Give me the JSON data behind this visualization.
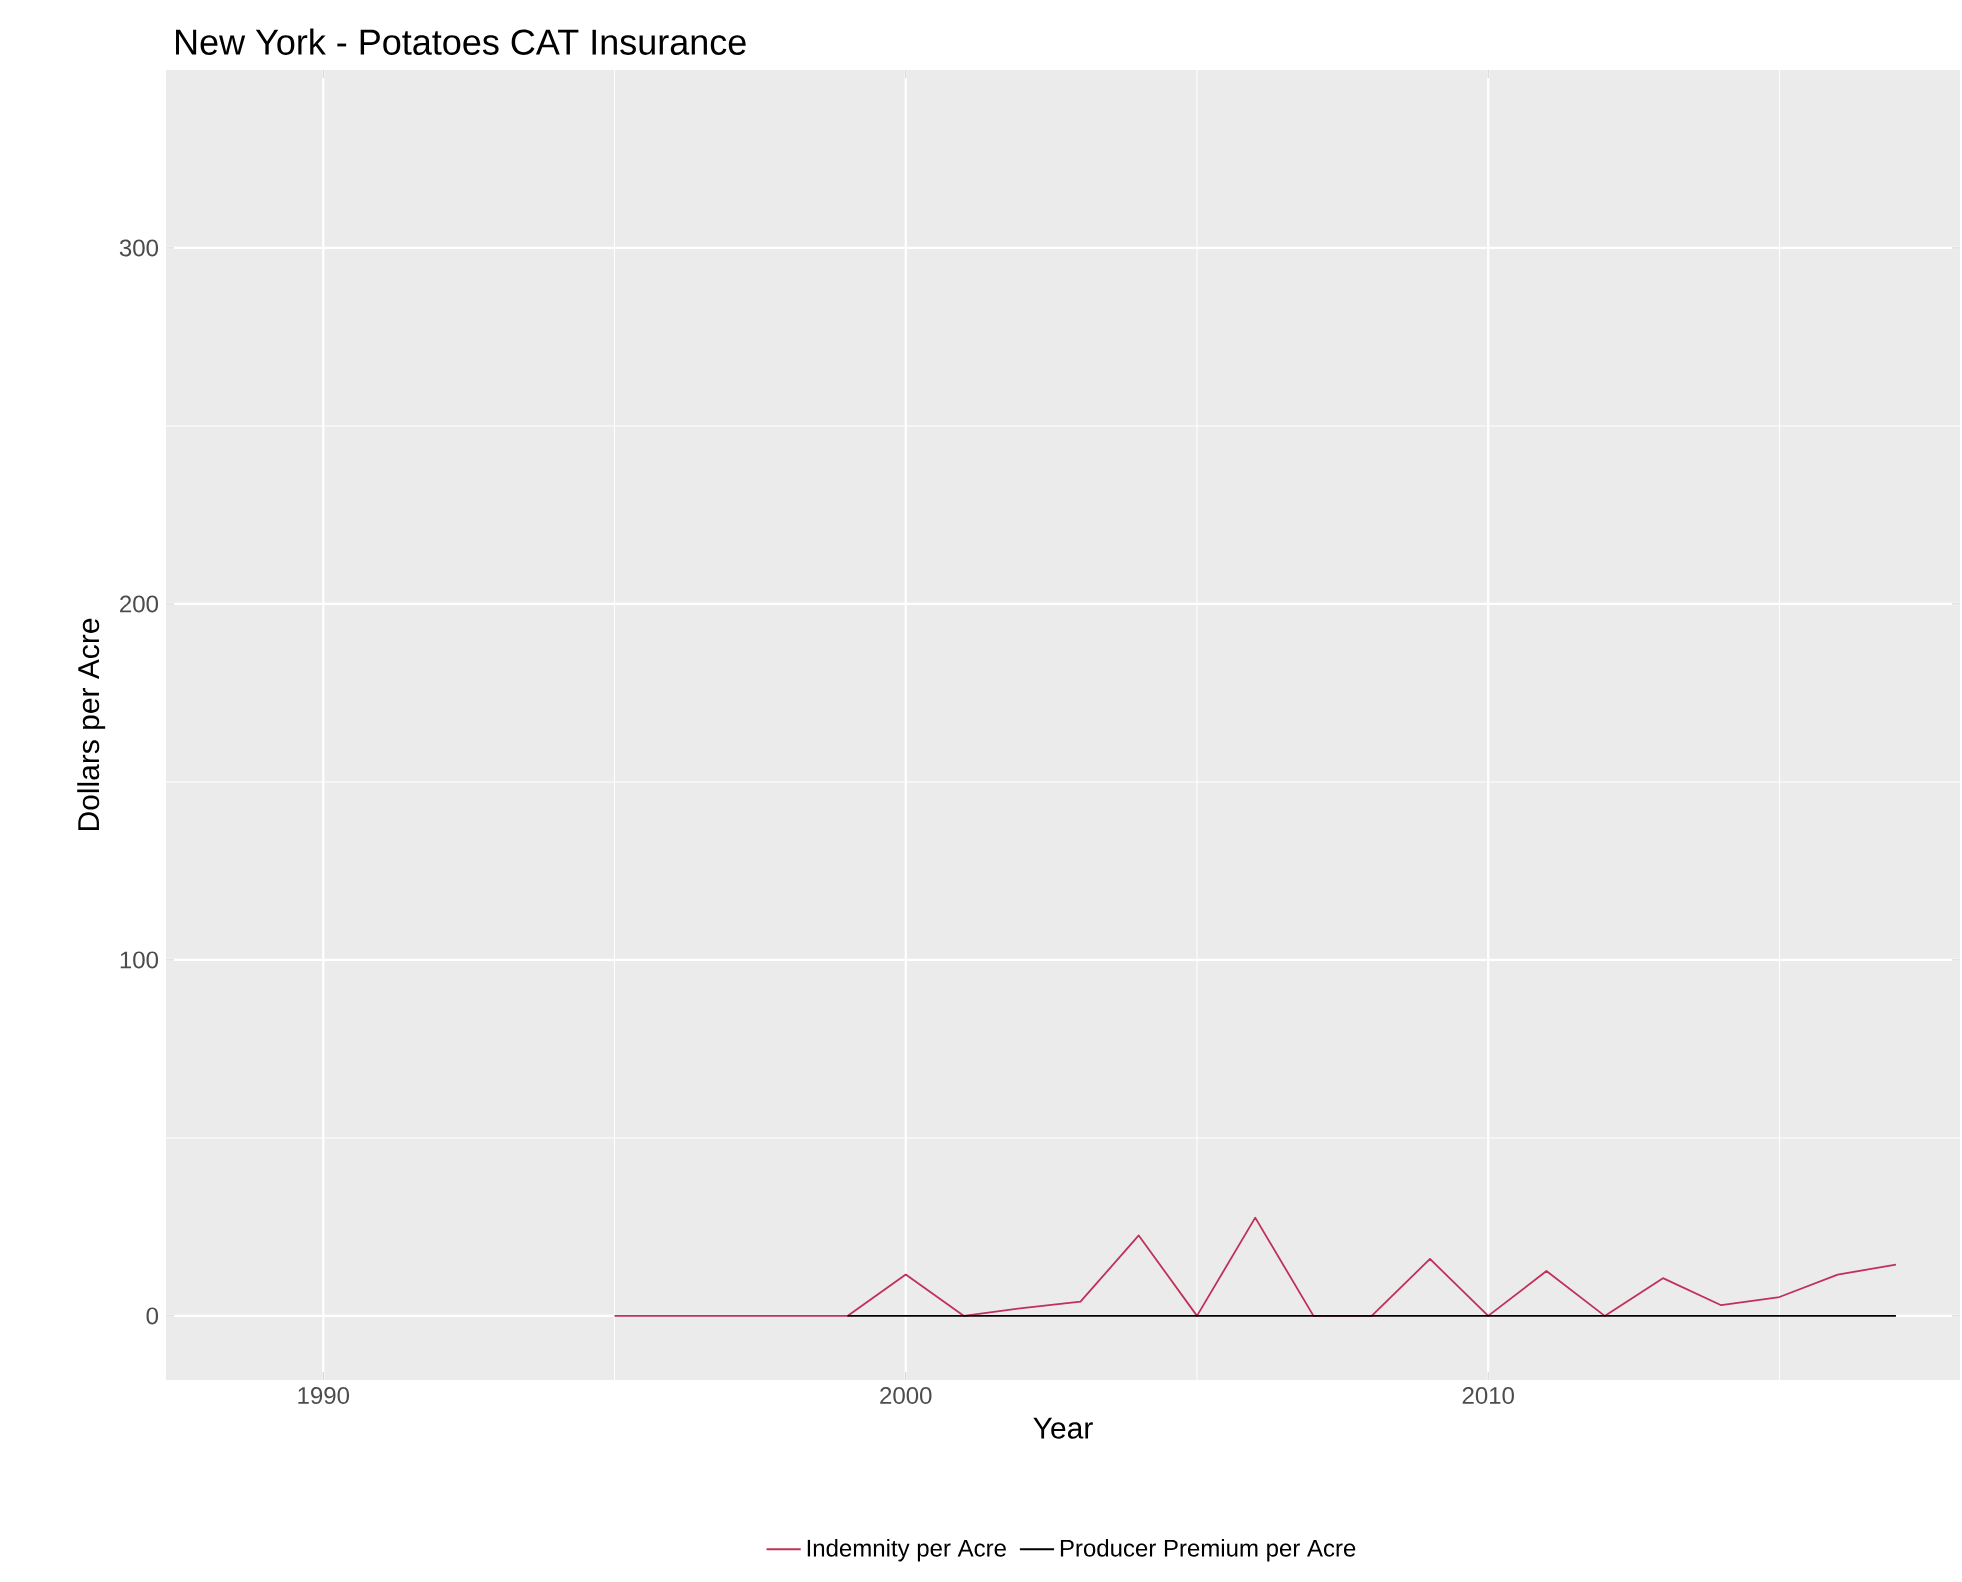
{
  "chart_data": {
    "type": "line",
    "title": "New York - Potatoes CAT Insurance",
    "xlabel": "Year",
    "ylabel": "Dollars per Acre",
    "series": [
      {
        "name": "Indemnity per Acre",
        "color": "#c0305a",
        "x": [
          1995,
          1996,
          1997,
          1998,
          1999,
          2000,
          2001,
          2002,
          2003,
          2004,
          2005,
          2006,
          2007,
          2008,
          2009,
          2010,
          2011,
          2012,
          2013,
          2014,
          2015,
          2016,
          2017
        ],
        "values": [
          0,
          0,
          0,
          0,
          0,
          11.6,
          0,
          2.2,
          4,
          22.6,
          0,
          27.6,
          0,
          0,
          16,
          0,
          12.6,
          0,
          10.6,
          3,
          5.3,
          11.6,
          14.4
        ]
      },
      {
        "name": "Producer Premium per Acre",
        "color": "#000000",
        "x": [
          1999,
          2000,
          2001,
          2002,
          2003,
          2004,
          2005,
          2006,
          2007,
          2008,
          2009,
          2010,
          2011,
          2012,
          2013,
          2014,
          2015,
          2016,
          2017
        ],
        "values": [
          0,
          0,
          0,
          0,
          0,
          0,
          0,
          0,
          0,
          0,
          0,
          0,
          0,
          0,
          0,
          0,
          0,
          0,
          0
        ]
      }
    ],
    "xlim": [
      1987.3,
      2018.1
    ],
    "ylim": [
      -18,
      350
    ],
    "xticks": [
      1990,
      2000,
      2010
    ],
    "yticks": [
      0,
      100,
      200,
      300
    ],
    "grid": true,
    "legend": "bottom",
    "marker": "none",
    "line_style": "solid"
  }
}
